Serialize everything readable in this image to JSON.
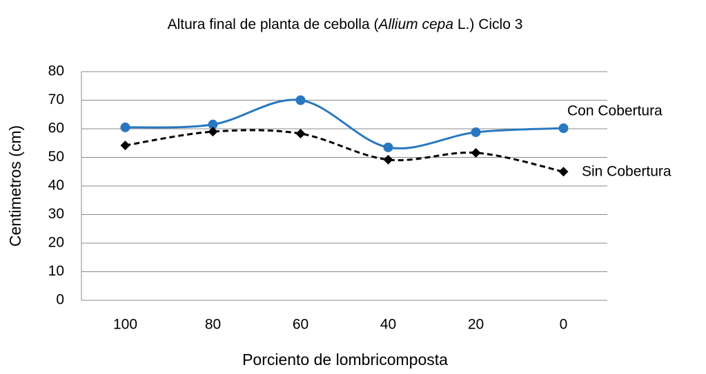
{
  "chart_data": {
    "type": "line",
    "title": [
      {
        "text": "Altura final de planta de cebolla (",
        "italic": false
      },
      {
        "text": "Allium cepa",
        "italic": true
      },
      {
        "text": " L.) Ciclo 3",
        "italic": false
      }
    ],
    "x_label": "Porciento de lombricomposta",
    "y_label": "Centimetros (cm)",
    "categories": [
      "100",
      "80",
      "60",
      "40",
      "20",
      "0"
    ],
    "series": [
      {
        "name": "Con Cobertura",
        "color": "#2878c0",
        "marker": "circle",
        "dashed": false,
        "values": [
          60.5,
          61.5,
          70,
          53.5,
          58.8,
          60.2
        ]
      },
      {
        "name": "Sin Cobertura",
        "color": "#000000",
        "marker": "diamond",
        "dashed": true,
        "values": [
          54.2,
          59,
          58.3,
          49.2,
          51.6,
          45
        ]
      }
    ],
    "ylim": [
      0,
      80
    ],
    "yticks": [
      0,
      10,
      20,
      30,
      40,
      50,
      60,
      70,
      80
    ],
    "grid": true,
    "smooth": true
  }
}
